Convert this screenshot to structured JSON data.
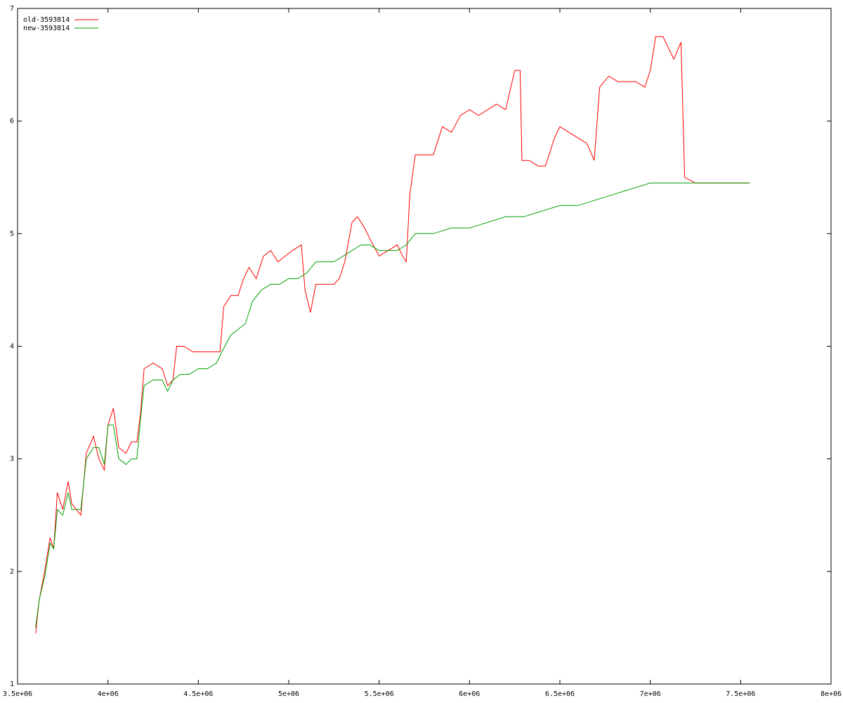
{
  "chart_data": {
    "type": "line",
    "xlim": [
      3500000,
      8000000
    ],
    "ylim": [
      1,
      7
    ],
    "xticks": [
      {
        "value": 3500000,
        "label": "3.5e+06"
      },
      {
        "value": 4000000,
        "label": "4e+06"
      },
      {
        "value": 4500000,
        "label": "4.5e+06"
      },
      {
        "value": 5000000,
        "label": "5e+06"
      },
      {
        "value": 5500000,
        "label": "5.5e+06"
      },
      {
        "value": 6000000,
        "label": "6e+06"
      },
      {
        "value": 6500000,
        "label": "6.5e+06"
      },
      {
        "value": 7000000,
        "label": "7e+06"
      },
      {
        "value": 7500000,
        "label": "7.5e+06"
      },
      {
        "value": 8000000,
        "label": "8e+06"
      }
    ],
    "yticks": [
      1,
      2,
      3,
      4,
      5,
      6,
      7
    ],
    "grid": false,
    "legend": "top-left",
    "series": [
      {
        "name": "old-3593814",
        "color": "#ff0000",
        "x": [
          3600000,
          3620000,
          3650000,
          3680000,
          3700000,
          3720000,
          3750000,
          3780000,
          3800000,
          3850000,
          3880000,
          3920000,
          3950000,
          3980000,
          4000000,
          4030000,
          4060000,
          4100000,
          4130000,
          4160000,
          4180000,
          4200000,
          4250000,
          4300000,
          4330000,
          4360000,
          4380000,
          4420000,
          4470000,
          4520000,
          4570000,
          4620000,
          4640000,
          4680000,
          4720000,
          4750000,
          4780000,
          4820000,
          4860000,
          4900000,
          4940000,
          4980000,
          5020000,
          5070000,
          5090000,
          5120000,
          5150000,
          5200000,
          5250000,
          5280000,
          5310000,
          5350000,
          5380000,
          5420000,
          5450000,
          5500000,
          5550000,
          5600000,
          5630000,
          5650000,
          5670000,
          5700000,
          5750000,
          5800000,
          5850000,
          5900000,
          5950000,
          6000000,
          6050000,
          6100000,
          6150000,
          6200000,
          6250000,
          6280000,
          6290000,
          6330000,
          6380000,
          6420000,
          6470000,
          6500000,
          6550000,
          6600000,
          6650000,
          6690000,
          6720000,
          6770000,
          6820000,
          6870000,
          6920000,
          6970000,
          7000000,
          7030000,
          7070000,
          7100000,
          7130000,
          7170000,
          7190000,
          7250000,
          7300000,
          7350000,
          7400000,
          7450000,
          7500000,
          7550000
        ],
        "values": [
          1.45,
          1.75,
          2.0,
          2.3,
          2.2,
          2.7,
          2.55,
          2.8,
          2.6,
          2.5,
          3.05,
          3.2,
          3.0,
          2.9,
          3.3,
          3.45,
          3.1,
          3.05,
          3.15,
          3.15,
          3.4,
          3.8,
          3.85,
          3.8,
          3.65,
          3.7,
          4.0,
          4.0,
          3.95,
          3.95,
          3.95,
          3.95,
          4.35,
          4.45,
          4.45,
          4.6,
          4.7,
          4.6,
          4.8,
          4.85,
          4.75,
          4.8,
          4.85,
          4.9,
          4.5,
          4.3,
          4.55,
          4.55,
          4.55,
          4.6,
          4.75,
          5.1,
          5.15,
          5.05,
          4.95,
          4.8,
          4.85,
          4.9,
          4.8,
          4.75,
          5.35,
          5.7,
          5.7,
          5.7,
          5.95,
          5.9,
          6.05,
          6.1,
          6.05,
          6.1,
          6.15,
          6.1,
          6.45,
          6.45,
          5.65,
          5.65,
          5.6,
          5.6,
          5.85,
          5.95,
          5.9,
          5.85,
          5.8,
          5.65,
          6.3,
          6.4,
          6.35,
          6.35,
          6.35,
          6.3,
          6.45,
          6.75,
          6.75,
          6.65,
          6.55,
          6.7,
          5.5,
          5.45,
          5.45,
          5.45,
          5.45,
          5.45,
          5.45,
          5.45
        ]
      },
      {
        "name": "new-3593814",
        "color": "#00a000",
        "x": [
          3600000,
          3620000,
          3650000,
          3680000,
          3700000,
          3720000,
          3750000,
          3780000,
          3800000,
          3850000,
          3880000,
          3920000,
          3950000,
          3980000,
          4000000,
          4030000,
          4060000,
          4100000,
          4130000,
          4160000,
          4180000,
          4200000,
          4250000,
          4300000,
          4330000,
          4360000,
          4400000,
          4450000,
          4500000,
          4550000,
          4600000,
          4630000,
          4680000,
          4720000,
          4760000,
          4800000,
          4850000,
          4900000,
          4950000,
          5000000,
          5050000,
          5100000,
          5150000,
          5200000,
          5250000,
          5300000,
          5350000,
          5400000,
          5450000,
          5500000,
          5550000,
          5600000,
          5650000,
          5700000,
          5800000,
          5900000,
          6000000,
          6100000,
          6200000,
          6300000,
          6400000,
          6500000,
          6600000,
          6700000,
          6800000,
          6900000,
          7000000,
          7100000,
          7200000,
          7300000,
          7400000,
          7500000,
          7550000
        ],
        "values": [
          1.5,
          1.75,
          1.95,
          2.25,
          2.2,
          2.55,
          2.5,
          2.7,
          2.55,
          2.55,
          3.0,
          3.1,
          3.1,
          2.95,
          3.3,
          3.3,
          3.0,
          2.95,
          3.0,
          3.0,
          3.35,
          3.65,
          3.7,
          3.7,
          3.6,
          3.7,
          3.75,
          3.75,
          3.8,
          3.8,
          3.85,
          3.95,
          4.1,
          4.15,
          4.2,
          4.4,
          4.5,
          4.55,
          4.55,
          4.6,
          4.6,
          4.65,
          4.75,
          4.75,
          4.75,
          4.8,
          4.85,
          4.9,
          4.9,
          4.85,
          4.85,
          4.85,
          4.9,
          5.0,
          5.0,
          5.05,
          5.05,
          5.1,
          5.15,
          5.15,
          5.2,
          5.25,
          5.25,
          5.3,
          5.35,
          5.4,
          5.45,
          5.45,
          5.45,
          5.45,
          5.45,
          5.45,
          5.45
        ]
      }
    ]
  }
}
